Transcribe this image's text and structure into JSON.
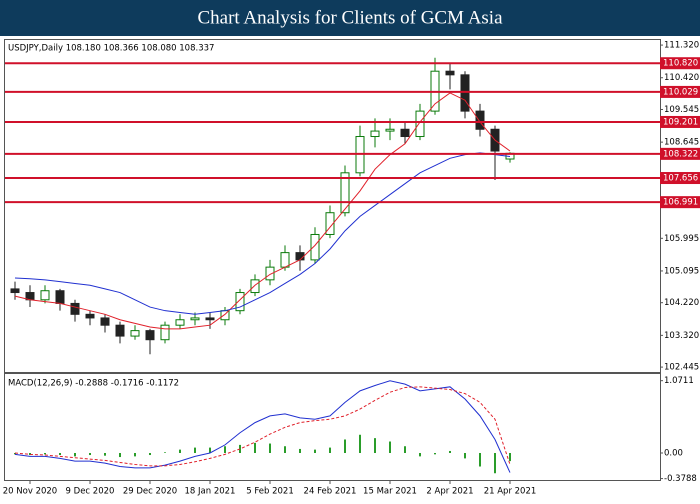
{
  "header": {
    "title": "Chart Analysis for Clients of GCM Asia"
  },
  "chart_data": [
    {
      "type": "candlestick",
      "title": "USDJPY,Daily 108.180 108.366 108.080 108.337",
      "open": [
        104.6,
        104.5,
        104.3,
        104.55,
        104.2,
        103.9,
        103.8,
        103.6,
        103.3,
        103.45,
        103.2,
        103.6,
        103.75,
        103.8,
        103.75,
        104.0,
        104.5,
        104.85,
        105.2,
        105.6,
        105.4,
        106.1,
        106.7,
        107.8,
        108.8,
        108.95,
        109.0,
        108.8,
        109.5,
        110.6,
        110.5,
        109.5,
        109.0,
        108.18
      ],
      "high": [
        104.8,
        104.7,
        104.7,
        104.6,
        104.3,
        104.0,
        103.9,
        103.7,
        103.6,
        103.5,
        103.7,
        103.9,
        103.95,
        103.95,
        104.1,
        104.6,
        105.0,
        105.4,
        105.8,
        105.8,
        106.3,
        106.9,
        108.0,
        109.1,
        109.3,
        109.3,
        109.2,
        109.7,
        110.97,
        110.8,
        110.6,
        109.7,
        109.1,
        108.366
      ],
      "low": [
        104.3,
        104.1,
        104.2,
        104.0,
        103.7,
        103.6,
        103.4,
        103.1,
        103.2,
        102.8,
        103.1,
        103.5,
        103.6,
        103.5,
        103.6,
        103.9,
        104.4,
        104.7,
        105.1,
        105.1,
        105.3,
        106.0,
        106.6,
        107.7,
        108.5,
        108.7,
        108.6,
        108.7,
        109.4,
        110.1,
        109.3,
        108.8,
        107.6,
        108.08
      ],
      "close": [
        104.5,
        104.3,
        104.55,
        104.2,
        103.9,
        103.8,
        103.6,
        103.3,
        103.45,
        103.2,
        103.6,
        103.75,
        103.8,
        103.75,
        104.0,
        104.5,
        104.85,
        105.2,
        105.6,
        105.4,
        106.1,
        106.7,
        107.8,
        108.8,
        108.95,
        109.0,
        108.8,
        109.5,
        110.6,
        110.5,
        109.5,
        109.0,
        108.4,
        108.337
      ],
      "up_color": "#0a7a0a",
      "down_color": "#222222",
      "series": [
        {
          "color": "#e0202a",
          "values": [
            104.4,
            104.3,
            104.25,
            104.2,
            104.1,
            104.0,
            103.9,
            103.75,
            103.65,
            103.55,
            103.5,
            103.5,
            103.55,
            103.6,
            103.9,
            104.3,
            104.7,
            105.0,
            105.2,
            105.4,
            105.8,
            106.3,
            106.8,
            107.3,
            107.9,
            108.3,
            108.6,
            109.2,
            109.7,
            110.0,
            109.8,
            109.2,
            108.7,
            108.4
          ]
        },
        {
          "color": "#2030d0",
          "values": [
            104.9,
            104.88,
            104.85,
            104.8,
            104.75,
            104.7,
            104.6,
            104.5,
            104.3,
            104.1,
            104.0,
            103.95,
            103.9,
            103.95,
            104.0,
            104.1,
            104.3,
            104.5,
            104.75,
            105.0,
            105.3,
            105.7,
            106.2,
            106.6,
            106.9,
            107.2,
            107.5,
            107.8,
            108.0,
            108.2,
            108.3,
            108.35,
            108.3,
            108.25
          ]
        }
      ],
      "levels": [
        {
          "value": 110.82,
          "label": "110.820"
        },
        110.029,
        109.201,
        108.322,
        107.656,
        106.991
      ],
      "level_color": "#d0102a",
      "ylim": [
        102.31,
        111.46
      ],
      "yticks": [
        {
          "value": 111.32,
          "label": "111.320"
        },
        {
          "value": 110.42,
          "label": "110.420"
        },
        109.545,
        108.645,
        105.995,
        105.095,
        {
          "value": 104.22,
          "label": "104.220"
        },
        {
          "value": 103.32,
          "label": "103.320"
        },
        102.445
      ]
    },
    {
      "type": "macd",
      "title": "MACD(12,26,9) -0.2888 -0.1716 -0.1172",
      "categories": [
        null,
        "20 Nov 2020",
        null,
        null,
        null,
        "9 Dec 2020",
        null,
        null,
        null,
        "29 Dec 2020",
        null,
        null,
        null,
        "18 Jan 2021",
        null,
        null,
        null,
        "5 Feb 2021",
        null,
        null,
        null,
        "24 Feb 2021",
        null,
        null,
        null,
        "15 Mar 2021",
        null,
        null,
        null,
        "2 Apr 2021",
        null,
        null,
        null,
        "21 Apr 2021"
      ],
      "histogram": {
        "color": "#2a9d2a",
        "values": [
          -0.02,
          -0.03,
          -0.02,
          -0.03,
          -0.05,
          -0.03,
          -0.04,
          -0.06,
          -0.05,
          -0.03,
          0.01,
          0.05,
          0.08,
          0.08,
          0.1,
          0.12,
          0.15,
          0.14,
          0.1,
          0.06,
          0.05,
          0.08,
          0.2,
          0.27,
          0.22,
          0.17,
          0.1,
          -0.05,
          -0.02,
          0.03,
          -0.08,
          -0.2,
          -0.3,
          -0.12
        ]
      },
      "series": [
        {
          "color": "#2030d0",
          "values": [
            -0.02,
            -0.05,
            -0.05,
            -0.08,
            -0.12,
            -0.12,
            -0.15,
            -0.2,
            -0.22,
            -0.22,
            -0.18,
            -0.12,
            -0.05,
            0.0,
            0.12,
            0.3,
            0.45,
            0.55,
            0.58,
            0.52,
            0.5,
            0.55,
            0.75,
            0.92,
            1.0,
            1.07,
            1.02,
            0.92,
            0.95,
            0.98,
            0.8,
            0.55,
            0.2,
            -0.29
          ]
        },
        {
          "color": "#e0202a",
          "dashed": true,
          "values": [
            0,
            -0.02,
            -0.03,
            -0.05,
            -0.07,
            -0.09,
            -0.11,
            -0.14,
            -0.17,
            -0.19,
            -0.19,
            -0.17,
            -0.13,
            -0.08,
            -0.02,
            0.06,
            0.16,
            0.28,
            0.38,
            0.45,
            0.48,
            0.5,
            0.55,
            0.65,
            0.78,
            0.9,
            0.97,
            0.98,
            0.96,
            0.94,
            0.88,
            0.75,
            0.5,
            -0.17
          ]
        }
      ],
      "ylim": [
        -0.4,
        1.17
      ],
      "yticks": [
        1.0711,
        {
          "value": 0,
          "label": "0.00"
        },
        -0.3788
      ]
    }
  ]
}
